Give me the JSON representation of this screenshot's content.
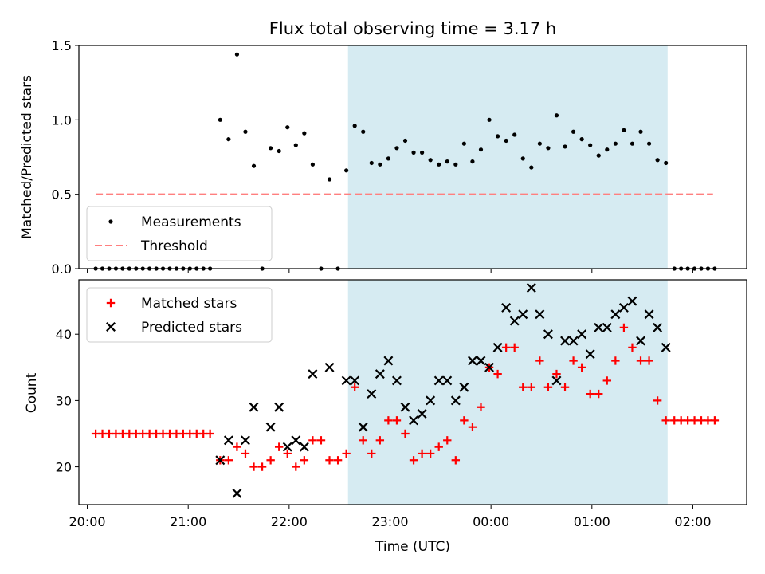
{
  "chart_data": {
    "type": "scatter",
    "title": "Flux total observing time = 3.17 h",
    "xlabel": "Time (UTC)",
    "x_ticks": [
      "20:00",
      "21:00",
      "22:00",
      "23:00",
      "00:00",
      "01:00",
      "02:00"
    ],
    "x_range": [
      "19:55",
      "02:32"
    ],
    "shaded_interval": [
      "22:35",
      "01:45"
    ],
    "shade_color": "#add8e6",
    "panels": [
      {
        "id": "ratio",
        "ylabel": "Matched/Predicted stars",
        "ylim": [
          0,
          1.5
        ],
        "yticks": [
          "0.0",
          "0.5",
          "1.0",
          "1.5"
        ],
        "legend_position": "lower left",
        "threshold": {
          "name": "Threshold",
          "value": 0.5,
          "x_from": "20:05",
          "x_to": "02:12",
          "color": "#ff7f7f"
        },
        "series": [
          {
            "name": "Measurements",
            "marker": "dot",
            "color": "#000000",
            "points": [
              [
                "20:05",
                0
              ],
              [
                "20:09",
                0
              ],
              [
                "20:13",
                0
              ],
              [
                "20:17",
                0
              ],
              [
                "20:21",
                0
              ],
              [
                "20:25",
                0
              ],
              [
                "20:29",
                0
              ],
              [
                "20:33",
                0
              ],
              [
                "20:37",
                0
              ],
              [
                "20:41",
                0
              ],
              [
                "20:45",
                0
              ],
              [
                "20:49",
                0
              ],
              [
                "20:53",
                0
              ],
              [
                "20:57",
                0
              ],
              [
                "21:01",
                0
              ],
              [
                "21:05",
                0
              ],
              [
                "21:09",
                0
              ],
              [
                "21:13",
                0
              ],
              [
                "21:19",
                1.0
              ],
              [
                "21:24",
                0.87
              ],
              [
                "21:29",
                1.44
              ],
              [
                "21:34",
                0.92
              ],
              [
                "21:39",
                0.69
              ],
              [
                "21:44",
                0
              ],
              [
                "21:49",
                0.81
              ],
              [
                "21:54",
                0.79
              ],
              [
                "21:59",
                0.95
              ],
              [
                "22:04",
                0.83
              ],
              [
                "22:09",
                0.91
              ],
              [
                "22:14",
                0.7
              ],
              [
                "22:19",
                0
              ],
              [
                "22:24",
                0.6
              ],
              [
                "22:29",
                0
              ],
              [
                "22:34",
                0.66
              ],
              [
                "22:39",
                0.96
              ],
              [
                "22:44",
                0.92
              ],
              [
                "22:49",
                0.71
              ],
              [
                "22:54",
                0.7
              ],
              [
                "22:59",
                0.74
              ],
              [
                "23:04",
                0.81
              ],
              [
                "23:09",
                0.86
              ],
              [
                "23:14",
                0.78
              ],
              [
                "23:19",
                0.78
              ],
              [
                "23:24",
                0.73
              ],
              [
                "23:29",
                0.7
              ],
              [
                "23:34",
                0.72
              ],
              [
                "23:39",
                0.7
              ],
              [
                "23:44",
                0.84
              ],
              [
                "23:49",
                0.72
              ],
              [
                "23:54",
                0.8
              ],
              [
                "23:59",
                1.0
              ],
              [
                "00:04",
                0.89
              ],
              [
                "00:09",
                0.86
              ],
              [
                "00:14",
                0.9
              ],
              [
                "00:19",
                0.74
              ],
              [
                "00:24",
                0.68
              ],
              [
                "00:29",
                0.84
              ],
              [
                "00:34",
                0.81
              ],
              [
                "00:39",
                1.03
              ],
              [
                "00:44",
                0.82
              ],
              [
                "00:49",
                0.92
              ],
              [
                "00:54",
                0.87
              ],
              [
                "00:59",
                0.83
              ],
              [
                "01:04",
                0.76
              ],
              [
                "01:09",
                0.8
              ],
              [
                "01:14",
                0.84
              ],
              [
                "01:19",
                0.93
              ],
              [
                "01:24",
                0.84
              ],
              [
                "01:29",
                0.92
              ],
              [
                "01:34",
                0.84
              ],
              [
                "01:39",
                0.73
              ],
              [
                "01:44",
                0.71
              ],
              [
                "01:49",
                0
              ],
              [
                "01:53",
                0
              ],
              [
                "01:57",
                0
              ],
              [
                "02:01",
                0
              ],
              [
                "02:05",
                0
              ],
              [
                "02:09",
                0
              ],
              [
                "02:13",
                0
              ]
            ]
          }
        ]
      },
      {
        "id": "count",
        "ylabel": "Count",
        "ylim": [
          14.3,
          48.2
        ],
        "yticks": [
          "20",
          "30",
          "40"
        ],
        "legend_position": "upper left",
        "series": [
          {
            "name": "Matched stars",
            "marker": "plus",
            "color": "#ff0000",
            "points": [
              [
                "20:05",
                25
              ],
              [
                "20:09",
                25
              ],
              [
                "20:13",
                25
              ],
              [
                "20:17",
                25
              ],
              [
                "20:21",
                25
              ],
              [
                "20:25",
                25
              ],
              [
                "20:29",
                25
              ],
              [
                "20:33",
                25
              ],
              [
                "20:37",
                25
              ],
              [
                "20:41",
                25
              ],
              [
                "20:45",
                25
              ],
              [
                "20:49",
                25
              ],
              [
                "20:53",
                25
              ],
              [
                "20:57",
                25
              ],
              [
                "21:01",
                25
              ],
              [
                "21:05",
                25
              ],
              [
                "21:09",
                25
              ],
              [
                "21:13",
                25
              ],
              [
                "21:19",
                21
              ],
              [
                "21:24",
                21
              ],
              [
                "21:29",
                23
              ],
              [
                "21:34",
                22
              ],
              [
                "21:39",
                20
              ],
              [
                "21:44",
                20
              ],
              [
                "21:49",
                21
              ],
              [
                "21:54",
                23
              ],
              [
                "21:59",
                22
              ],
              [
                "22:04",
                20
              ],
              [
                "22:09",
                21
              ],
              [
                "22:14",
                24
              ],
              [
                "22:19",
                24
              ],
              [
                "22:24",
                21
              ],
              [
                "22:29",
                21
              ],
              [
                "22:34",
                22
              ],
              [
                "22:39",
                32
              ],
              [
                "22:44",
                24
              ],
              [
                "22:49",
                22
              ],
              [
                "22:54",
                24
              ],
              [
                "22:59",
                27
              ],
              [
                "23:04",
                27
              ],
              [
                "23:09",
                25
              ],
              [
                "23:14",
                21
              ],
              [
                "23:19",
                22
              ],
              [
                "23:24",
                22
              ],
              [
                "23:29",
                23
              ],
              [
                "23:34",
                24
              ],
              [
                "23:39",
                21
              ],
              [
                "23:44",
                27
              ],
              [
                "23:49",
                26
              ],
              [
                "23:54",
                29
              ],
              [
                "23:59",
                35
              ],
              [
                "00:04",
                34
              ],
              [
                "00:09",
                38
              ],
              [
                "00:14",
                38
              ],
              [
                "00:19",
                32
              ],
              [
                "00:24",
                32
              ],
              [
                "00:29",
                36
              ],
              [
                "00:34",
                32
              ],
              [
                "00:39",
                34
              ],
              [
                "00:44",
                32
              ],
              [
                "00:49",
                36
              ],
              [
                "00:54",
                35
              ],
              [
                "00:59",
                31
              ],
              [
                "01:04",
                31
              ],
              [
                "01:09",
                33
              ],
              [
                "01:14",
                36
              ],
              [
                "01:19",
                41
              ],
              [
                "01:24",
                38
              ],
              [
                "01:29",
                36
              ],
              [
                "01:34",
                36
              ],
              [
                "01:39",
                30
              ],
              [
                "01:44",
                27
              ],
              [
                "01:49",
                27
              ],
              [
                "01:53",
                27
              ],
              [
                "01:57",
                27
              ],
              [
                "02:01",
                27
              ],
              [
                "02:05",
                27
              ],
              [
                "02:09",
                27
              ],
              [
                "02:13",
                27
              ]
            ]
          },
          {
            "name": "Predicted stars",
            "marker": "x",
            "color": "#000000",
            "points": [
              [
                "21:19",
                21
              ],
              [
                "21:24",
                24
              ],
              [
                "21:29",
                16
              ],
              [
                "21:34",
                24
              ],
              [
                "21:39",
                29
              ],
              [
                "21:49",
                26
              ],
              [
                "21:54",
                29
              ],
              [
                "21:59",
                23
              ],
              [
                "22:04",
                24
              ],
              [
                "22:09",
                23
              ],
              [
                "22:14",
                34
              ],
              [
                "22:24",
                35
              ],
              [
                "22:34",
                33
              ],
              [
                "22:39",
                33
              ],
              [
                "22:44",
                26
              ],
              [
                "22:49",
                31
              ],
              [
                "22:54",
                34
              ],
              [
                "22:59",
                36
              ],
              [
                "23:04",
                33
              ],
              [
                "23:09",
                29
              ],
              [
                "23:14",
                27
              ],
              [
                "23:19",
                28
              ],
              [
                "23:24",
                30
              ],
              [
                "23:29",
                33
              ],
              [
                "23:34",
                33
              ],
              [
                "23:39",
                30
              ],
              [
                "23:44",
                32
              ],
              [
                "23:49",
                36
              ],
              [
                "23:54",
                36
              ],
              [
                "23:59",
                35
              ],
              [
                "00:04",
                38
              ],
              [
                "00:09",
                44
              ],
              [
                "00:14",
                42
              ],
              [
                "00:19",
                43
              ],
              [
                "00:24",
                47
              ],
              [
                "00:29",
                43
              ],
              [
                "00:34",
                40
              ],
              [
                "00:39",
                33
              ],
              [
                "00:44",
                39
              ],
              [
                "00:49",
                39
              ],
              [
                "00:54",
                40
              ],
              [
                "00:59",
                37
              ],
              [
                "01:04",
                41
              ],
              [
                "01:09",
                41
              ],
              [
                "01:14",
                43
              ],
              [
                "01:19",
                44
              ],
              [
                "01:24",
                45
              ],
              [
                "01:29",
                39
              ],
              [
                "01:34",
                43
              ],
              [
                "01:39",
                41
              ],
              [
                "01:44",
                38
              ]
            ]
          }
        ]
      }
    ]
  }
}
